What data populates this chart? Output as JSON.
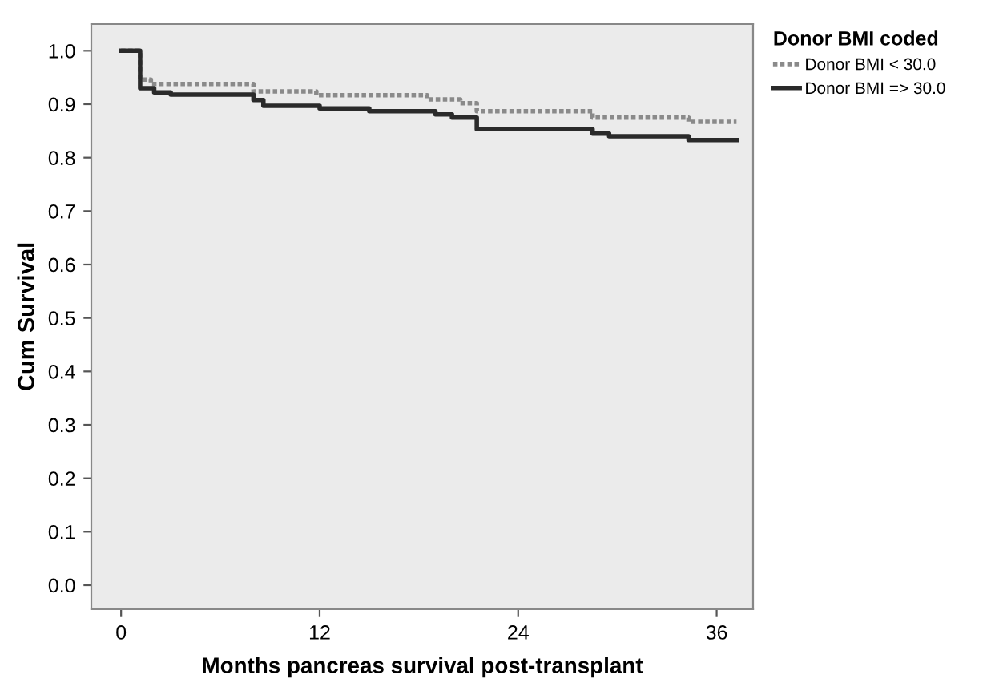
{
  "chart_data": {
    "type": "step",
    "xlabel": "Months pancreas survival post-transplant",
    "ylabel": "Cum Survival",
    "legend_title": "Donor BMI coded",
    "legend": "right",
    "grid": false,
    "xlim": [
      -1.8,
      38.2
    ],
    "xticks": [
      0,
      12,
      24,
      36
    ],
    "ylim": [
      -0.045,
      1.05
    ],
    "yticks": [
      {
        "value": 0,
        "label": "0.0"
      },
      {
        "value": 0.1,
        "label": "0.1"
      },
      {
        "value": 0.2,
        "label": "0.2"
      },
      {
        "value": 0.3,
        "label": "0.3"
      },
      {
        "value": 0.4,
        "label": "0.4"
      },
      {
        "value": 0.5,
        "label": "0.5"
      },
      {
        "value": 0.6,
        "label": "0.6"
      },
      {
        "value": 0.7,
        "label": "0.7"
      },
      {
        "value": 0.8,
        "label": "0.8"
      },
      {
        "value": 0.9,
        "label": "0.9"
      },
      {
        "value": 1.0,
        "label": "1.0"
      }
    ],
    "series": [
      {
        "name": "Donor BMI < 30.0",
        "color": "#8a8a8a",
        "line_style": "dotted",
        "x": [
          0,
          1.15,
          1.8,
          8.0,
          11.8,
          18.5,
          20.5,
          21.5,
          28.5,
          34.3,
          37.2
        ],
        "values": [
          1.0,
          0.946,
          0.938,
          0.924,
          0.917,
          0.909,
          0.902,
          0.887,
          0.875,
          0.867,
          0.867
        ]
      },
      {
        "name": "Donor BMI => 30.0",
        "color": "#2a2a2a",
        "line_style": "solid",
        "x": [
          0,
          1.15,
          2.0,
          3.0,
          8.0,
          8.6,
          12.0,
          15.0,
          19.0,
          20.0,
          21.5,
          28.5,
          29.5,
          34.3,
          37.2
        ],
        "values": [
          1.0,
          0.93,
          0.922,
          0.918,
          0.908,
          0.897,
          0.892,
          0.887,
          0.881,
          0.875,
          0.853,
          0.845,
          0.84,
          0.833,
          0.833
        ]
      }
    ]
  }
}
